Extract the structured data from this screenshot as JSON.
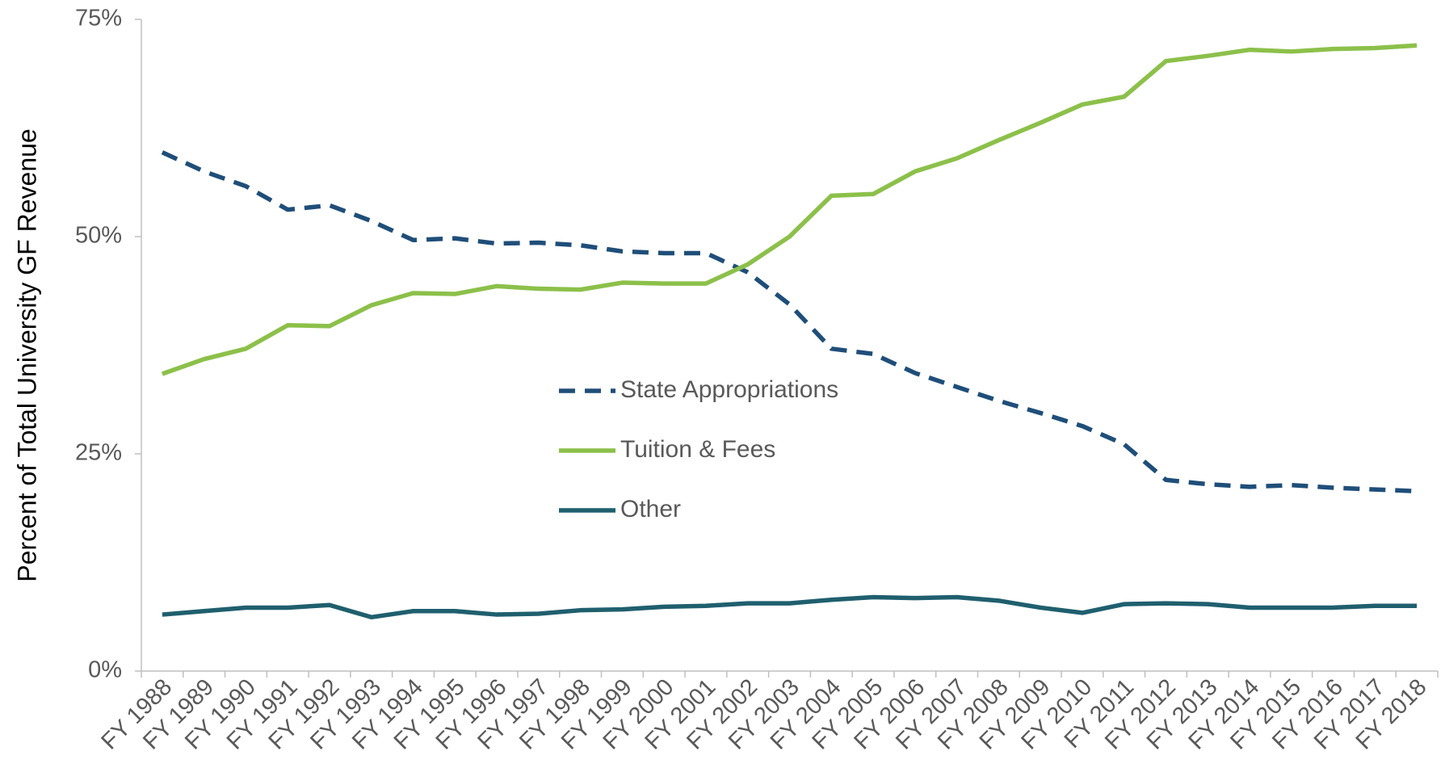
{
  "chart_data": {
    "type": "line",
    "y_label": "Percent of Total University GF Revenue",
    "categories": [
      "FY 1988",
      "FY 1989",
      "FY 1990",
      "FY 1991",
      "FY 1992",
      "FY 1993",
      "FY 1994",
      "FY 1995",
      "FY 1996",
      "FY 1997",
      "FY 1998",
      "FY 1999",
      "FY 2000",
      "FY 2001",
      "FY 2002",
      "FY 2003",
      "FY 2004",
      "FY 2005",
      "FY 2006",
      "FY 2007",
      "FY 2008",
      "FY 2009",
      "FY 2010",
      "FY 2011",
      "FY 2012",
      "FY 2013",
      "FY 2014",
      "FY 2015",
      "FY 2016",
      "FY 2017",
      "FY 2018"
    ],
    "series": [
      {
        "name": "State Appropriations",
        "color": "#1f4e79",
        "dashed": true,
        "values": [
          59.7,
          57.5,
          55.8,
          53.1,
          53.6,
          51.8,
          49.6,
          49.8,
          49.2,
          49.3,
          49.0,
          48.3,
          48.1,
          48.1,
          45.9,
          42.2,
          37.1,
          36.5,
          34.3,
          32.7,
          31.1,
          29.7,
          28.2,
          26.1,
          22.0,
          21.5,
          21.2,
          21.4,
          21.1,
          20.9,
          20.7
        ]
      },
      {
        "name": "Tuition & Fees",
        "color": "#8cc04a",
        "dashed": false,
        "values": [
          34.2,
          35.9,
          37.1,
          39.8,
          39.7,
          42.1,
          43.5,
          43.4,
          44.3,
          44.0,
          43.9,
          44.7,
          44.6,
          44.6,
          46.8,
          50.0,
          54.7,
          54.9,
          57.5,
          59.0,
          61.1,
          63.1,
          65.2,
          66.1,
          70.2,
          70.8,
          71.5,
          71.3,
          71.6,
          71.7,
          72.0
        ]
      },
      {
        "name": "Other",
        "color": "#1f5f6e",
        "dashed": false,
        "values": [
          6.5,
          6.9,
          7.3,
          7.3,
          7.6,
          6.2,
          6.9,
          6.9,
          6.5,
          6.6,
          7.0,
          7.1,
          7.4,
          7.5,
          7.8,
          7.8,
          8.2,
          8.5,
          8.4,
          8.5,
          8.1,
          7.3,
          6.7,
          7.7,
          7.8,
          7.7,
          7.3,
          7.3,
          7.3,
          7.5,
          7.5
        ]
      }
    ],
    "ylim": [
      0,
      75
    ],
    "yticks": [
      {
        "value": 0,
        "label": "0%"
      },
      {
        "value": 25,
        "label": "25%"
      },
      {
        "value": 50,
        "label": "50%"
      },
      {
        "value": 75,
        "label": "75%"
      }
    ],
    "grid": false
  }
}
